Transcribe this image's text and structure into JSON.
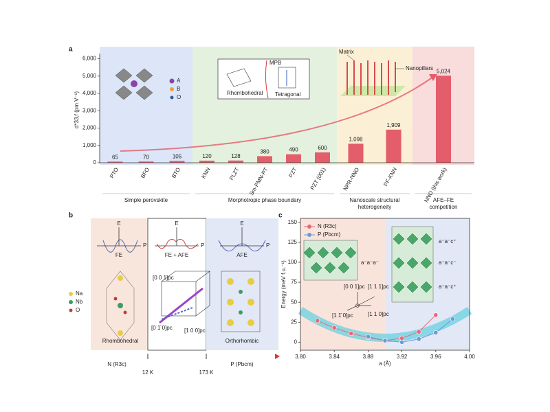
{
  "panel_labels": [
    "a",
    "b",
    "c"
  ],
  "chart_data": [
    {
      "type": "bar",
      "ylabel": "d*33,f (pm V⁻¹)",
      "categories": [
        "PTO",
        "BFO",
        "BTO",
        "KNN",
        "PLZT",
        "Sm-PMN-PT",
        "PZT",
        "PZT (001)",
        "NPR-NNO",
        "PF-KNN",
        "NNO (this work)"
      ],
      "values": [
        65,
        70,
        105,
        120,
        128,
        380,
        490,
        600,
        1098,
        1909,
        5024
      ],
      "value_labels": [
        "65",
        "70",
        "105",
        "120",
        "128",
        "380",
        "490",
        "600",
        "1,098",
        "1,909",
        "5,024"
      ],
      "color": "#e35d6a",
      "ylim": [
        0,
        6300
      ],
      "yticks": [
        0,
        {
          "value": 1000,
          "label": "1,000"
        },
        {
          "value": 2000,
          "label": "2,000"
        },
        {
          "value": 3000,
          "label": "3,000"
        },
        {
          "value": 4000,
          "label": "4,000"
        },
        {
          "value": 5000,
          "label": "5,000"
        },
        {
          "value": 6000,
          "label": "6,000"
        }
      ],
      "groups": [
        [
          "Simple perovskite"
        ],
        [
          "Morphotropic phase boundary"
        ],
        [
          "Nanoscale structural",
          "heterogeneity"
        ],
        [
          "AFE–FE",
          "competition"
        ]
      ],
      "group_colors": [
        "#dce6f8",
        "#e4f1df",
        "#fbf0d6",
        "#f9dcdc"
      ]
    },
    {
      "type": "line",
      "xlabel": "a (Å)",
      "ylabel": "Energy (meV f.u.⁻¹)",
      "x": [
        3.82,
        3.84,
        3.86,
        3.88,
        3.9,
        3.92,
        3.94,
        3.96,
        3.98
      ],
      "series": [
        {
          "name": "N (R3c)",
          "color": "#e8687a",
          "values": [
            27,
            18,
            11,
            6,
            2,
            5,
            13,
            34,
            null
          ]
        },
        {
          "name": "P (Pbcm)",
          "color": "#6a9ad8",
          "values": [
            null,
            null,
            null,
            7,
            2,
            0,
            4,
            12,
            29
          ]
        }
      ],
      "xlim": [
        3.8,
        4.0
      ],
      "xticks": [
        {
          "value": 3.8,
          "label": "3.80"
        },
        3.84,
        3.88,
        3.92,
        3.96,
        {
          "value": 4,
          "label": "4.00"
        }
      ],
      "ylim": [
        -10,
        155
      ],
      "yticks": [
        0,
        25,
        50,
        75,
        100,
        125,
        150
      ]
    }
  ],
  "panel_a_insets": {
    "sites": [
      "A",
      "B",
      "O"
    ],
    "mpb": [
      "Rhombohedral",
      "MPB",
      "Tetragonal"
    ],
    "nano": [
      "Matrix",
      "Nanopillars"
    ]
  },
  "panel_b": {
    "columns": [
      "FE",
      "FE + AFE",
      "AFE"
    ],
    "ep_axes": [
      "E",
      "P"
    ],
    "atoms": [
      "Na",
      "Nb",
      "O"
    ],
    "structures": [
      "Rhombohedral",
      "Orthorhombic"
    ],
    "directions": [
      "[0 0 1]pc",
      "[0 1̄ 0]pc",
      "[1 0 0]pc"
    ],
    "transition": [
      "N (R3c)",
      "12 K",
      "173 K",
      "P (Pbcm)"
    ]
  },
  "panel_c_insets": {
    "tilts": [
      "a⁻a⁻a⁻",
      "a⁻a⁻c⁺",
      "a⁻a⁻c⁻",
      "a⁻a⁻c⁺"
    ],
    "directions": [
      "[0 0 1]pc",
      "[1 1 1]pc",
      "[1 1̄ 0]pc",
      "[1 1 0]pc"
    ]
  }
}
